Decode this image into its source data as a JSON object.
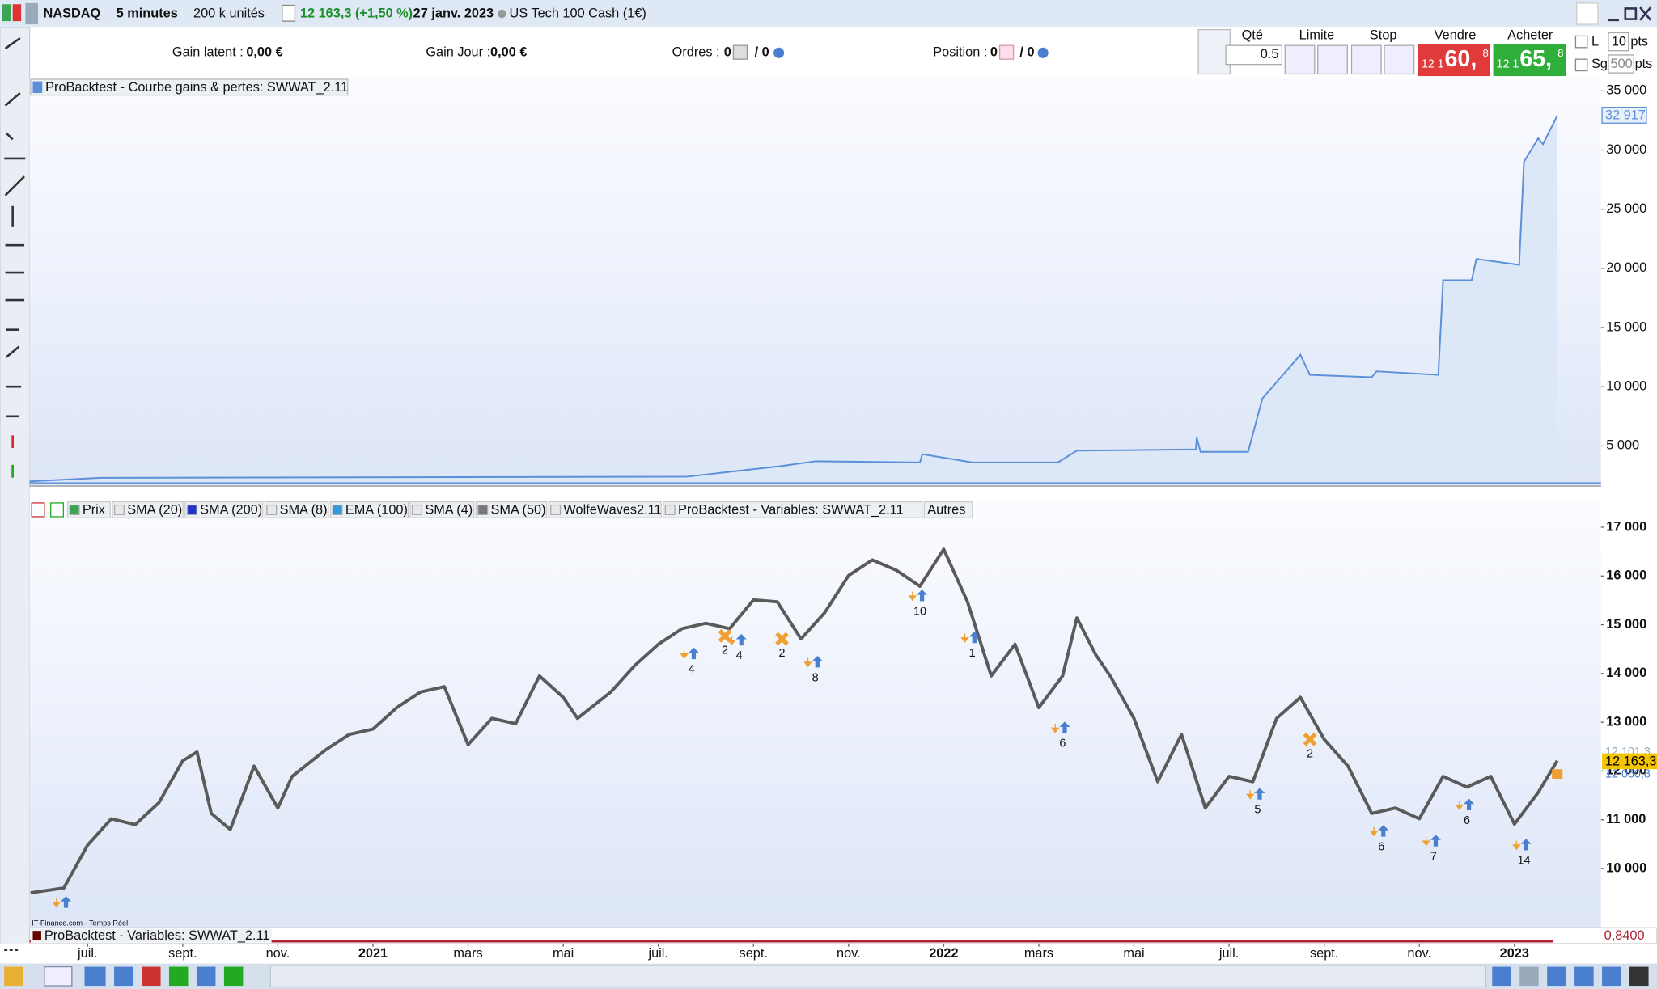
{
  "topbar": {
    "market": "NASDAQ",
    "period": "5 minutes",
    "units": "200 k unités",
    "quote": "12 163,3 (+1,50 %)",
    "date": "27 janv. 2023",
    "instrument": "US Tech 100 Cash (1€)"
  },
  "infobar": {
    "gain_latent_label": "Gain latent :",
    "gain_latent": "0,00 €",
    "gain_jour_label": "Gain Jour :",
    "gain_jour": "0,00 €",
    "ordres_label": "Ordres :",
    "ordres": "0",
    "ordres_2": "/ 0",
    "position_label": "Position :",
    "position": "0",
    "position_2": "/ 0"
  },
  "order_panel": {
    "qty_label": "Qté",
    "qty": "0.5",
    "limit_label": "Limite",
    "stop_label": "Stop",
    "sell_label": "Vendre",
    "sell_prefix": "12 1",
    "sell_price": "60,",
    "sell_suffix": "8",
    "buy_label": "Acheter",
    "buy_prefix": "12 1",
    "buy_price": "65,",
    "buy_suffix": "8",
    "l_label": "L",
    "l_value": "10",
    "l_unit": "pts",
    "sg_label": "Sg",
    "sg_value": "500",
    "sg_unit": "pts"
  },
  "equity_chart": {
    "title": "ProBacktest - Courbe gains & pertes: SWWAT_2.11",
    "color": "#5b8fd9",
    "fill": "#dce7f8",
    "x": [
      -1.22,
      0.27,
      12.6,
      13.7,
      14.6,
      15.3,
      17.5,
      17.55,
      18.6,
      20.4,
      20.8,
      23.3,
      23.32,
      23.4,
      24.4,
      24.7,
      25.5,
      25.7,
      27.0,
      27.1,
      28.4,
      28.5,
      29.1,
      29.2,
      30.1,
      30.2,
      30.5,
      30.6,
      30.9
    ],
    "values": [
      2000,
      2300,
      2400,
      2900,
      3300,
      3700,
      3600,
      4300,
      3600,
      3600,
      4600,
      4700,
      5700,
      4500,
      4500,
      9000,
      12700,
      11000,
      10800,
      11300,
      11000,
      19000,
      19000,
      20800,
      20300,
      29000,
      31000,
      30500,
      32900
    ],
    "ylim": [
      1786,
      36071
    ],
    "yticks": [
      {
        "value": 5000,
        "label": "5 000"
      },
      {
        "value": 10000,
        "label": "10 000"
      },
      {
        "value": 15000,
        "label": "15 000"
      },
      {
        "value": 20000,
        "label": "20 000"
      },
      {
        "value": 25000,
        "label": "25 000"
      },
      {
        "value": 30000,
        "label": "30 000"
      },
      {
        "value": 35000,
        "label": "35 000"
      }
    ],
    "last_label": "32 917"
  },
  "price_chart": {
    "legend": [
      {
        "name": "Prix",
        "color": "#3aa655"
      },
      {
        "name": "SMA (20)",
        "color": "#e8e8e8"
      },
      {
        "name": "SMA (200)",
        "color": "#2233cc"
      },
      {
        "name": "SMA (8)",
        "color": "#e8e8e8"
      },
      {
        "name": "EMA (100)",
        "color": "#3399dd"
      },
      {
        "name": "SMA (4)",
        "color": "#e8e8e8"
      },
      {
        "name": "SMA (50)",
        "color": "#777777"
      },
      {
        "name": "WolfeWaves2.11",
        "color": "#e8e8e8"
      },
      {
        "name": "ProBacktest - Variables: SWWAT_2.11",
        "color": "#e8e8e8"
      },
      {
        "name": "Autres",
        "color": null
      }
    ],
    "color": "#5a5a5a",
    "x": [
      -1.2,
      -0.5,
      0,
      0.5,
      1,
      1.5,
      2,
      2.3,
      2.6,
      3,
      3.5,
      4,
      4.3,
      5,
      5.5,
      6,
      6.5,
      7,
      7.5,
      8,
      8.5,
      9,
      9.5,
      10,
      10.3,
      11,
      11.5,
      12,
      12.5,
      13,
      13.5,
      14,
      14.5,
      15,
      15.5,
      16,
      16.5,
      17,
      17.5,
      18,
      18.5,
      19,
      19.5,
      20,
      20.5,
      20.8,
      21.2,
      21.5,
      22,
      22.5,
      23,
      23.5,
      24,
      24.5,
      25,
      25.5,
      26,
      26.5,
      27,
      27.5,
      28,
      28.5,
      29,
      29.5,
      30,
      30.5,
      30.9
    ],
    "values": [
      9500,
      9600,
      10480,
      11020,
      10900,
      11350,
      12210,
      12390,
      11130,
      10800,
      12100,
      11240,
      11890,
      12430,
      12750,
      12860,
      13300,
      13620,
      13730,
      12540,
      13080,
      12970,
      13950,
      13510,
      13080,
      13620,
      14160,
      14600,
      14920,
      15030,
      14920,
      15510,
      15470,
      14710,
      15250,
      16010,
      16330,
      16120,
      15790,
      16550,
      15470,
      13950,
      14600,
      13300,
      13950,
      15140,
      14380,
      13950,
      13080,
      11780,
      12750,
      11240,
      11890,
      11780,
      13080,
      13510,
      12650,
      12100,
      11130,
      11240,
      11020,
      11890,
      11670,
      11890,
      10910,
      11560,
      12210
    ],
    "ylim": [
      8785,
      17195
    ],
    "yticks": [
      {
        "value": 10000,
        "label": "10 000"
      },
      {
        "value": 11000,
        "label": "11 000"
      },
      {
        "value": 12000,
        "label": "12 000"
      },
      {
        "value": 13000,
        "label": "13 000"
      },
      {
        "value": 14000,
        "label": "14 000"
      },
      {
        "value": 15000,
        "label": "15 000"
      },
      {
        "value": 16000,
        "label": "16 000"
      },
      {
        "value": 17000,
        "label": "17 000"
      }
    ],
    "xlim": [
      -1.22,
      31.82
    ],
    "xticks": [
      {
        "value": 0,
        "label": "juil."
      },
      {
        "value": 2,
        "label": "sept."
      },
      {
        "value": 4,
        "label": "nov."
      },
      {
        "value": 6,
        "label": "2021"
      },
      {
        "value": 8,
        "label": "mars"
      },
      {
        "value": 10,
        "label": "mai"
      },
      {
        "value": 12,
        "label": "juil."
      },
      {
        "value": 14,
        "label": "sept."
      },
      {
        "value": 16,
        "label": "nov."
      },
      {
        "value": 18,
        "label": "2022"
      },
      {
        "value": 20,
        "label": "mars"
      },
      {
        "value": 22,
        "label": "mai"
      },
      {
        "value": 24,
        "label": "juil."
      },
      {
        "value": 26,
        "label": "sept."
      },
      {
        "value": 28,
        "label": "nov."
      },
      {
        "value": 30,
        "label": "2023"
      }
    ],
    "trades": [
      {
        "x": -0.5,
        "price": 9280,
        "kind": "arrow"
      },
      {
        "x": 12.7,
        "price": 14380,
        "label": "4",
        "kind": "arrow"
      },
      {
        "x": 13.4,
        "price": 14770,
        "label": "2",
        "kind": "cross"
      },
      {
        "x": 13.7,
        "price": 14660,
        "label": "4",
        "kind": "arrow"
      },
      {
        "x": 14.6,
        "price": 14710,
        "label": "2",
        "kind": "cross"
      },
      {
        "x": 15.3,
        "price": 14210,
        "label": "8",
        "kind": "arrow"
      },
      {
        "x": 17.5,
        "price": 15570,
        "label": "10",
        "kind": "arrow"
      },
      {
        "x": 18.6,
        "price": 14710,
        "label": "1",
        "kind": "arrow"
      },
      {
        "x": 20.5,
        "price": 12860,
        "label": "6",
        "kind": "arrow"
      },
      {
        "x": 24.6,
        "price": 11500,
        "label": "5",
        "kind": "arrow"
      },
      {
        "x": 25.7,
        "price": 12650,
        "label": "2",
        "kind": "cross"
      },
      {
        "x": 27.2,
        "price": 10740,
        "label": "6",
        "kind": "arrow"
      },
      {
        "x": 28.3,
        "price": 10540,
        "label": "7",
        "kind": "arrow"
      },
      {
        "x": 29.0,
        "price": 11280,
        "label": "6",
        "kind": "arrow"
      },
      {
        "x": 30.2,
        "price": 10460,
        "label": "14",
        "kind": "arrow"
      }
    ],
    "price_label": "12 163,3",
    "price_label_2": "12 060,8",
    "price_label_3": "12 101,3",
    "watermark": "IT-Finance.com - Temps Réel"
  },
  "indicator": {
    "title": "ProBacktest - Variables: SWWAT_2.11",
    "value_label": "0,8400"
  }
}
